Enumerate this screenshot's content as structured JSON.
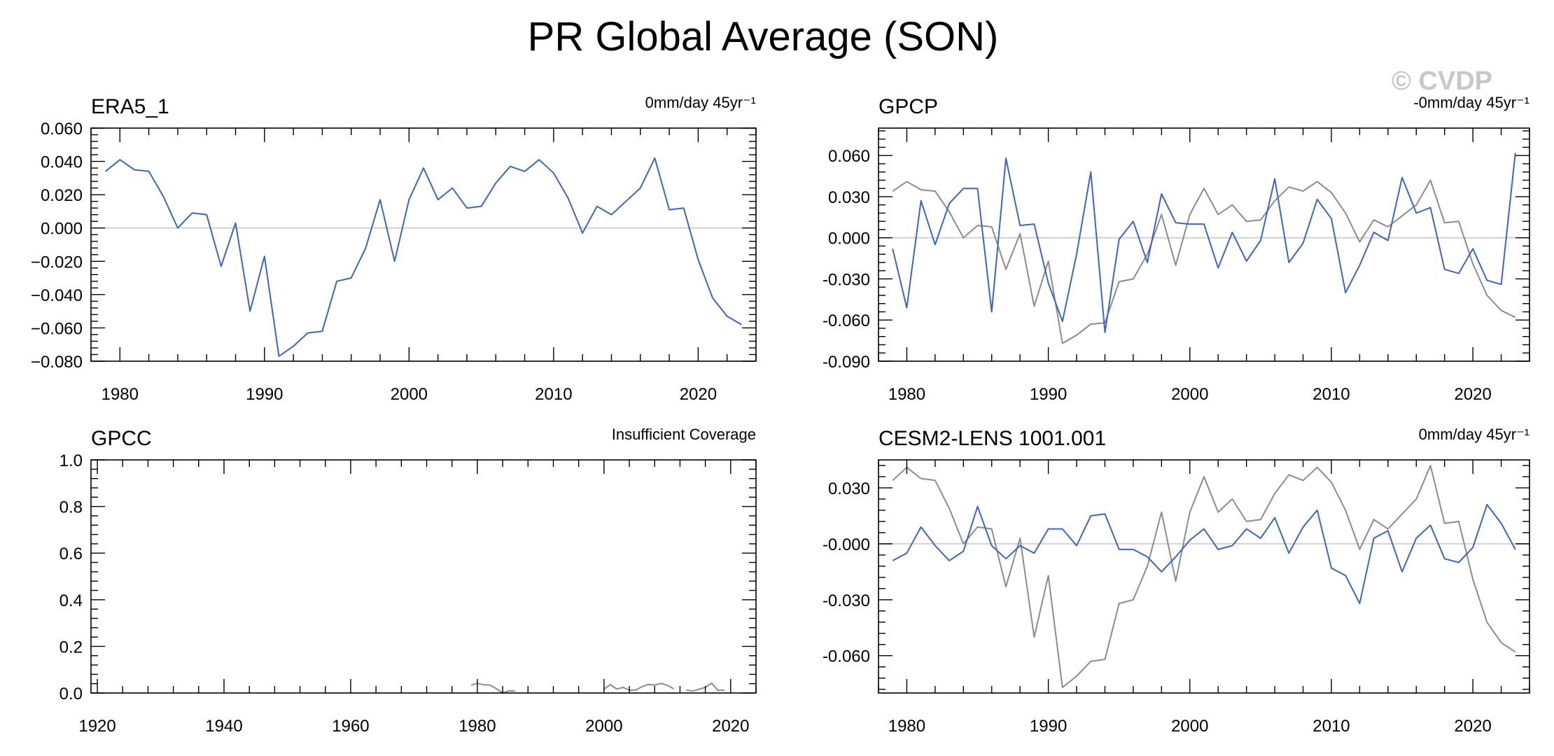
{
  "title": "PR Global Average (SON)",
  "watermark": "© CVDP",
  "colors": {
    "blue_series": "#3a63d6",
    "gray_series": "#8c8c8c",
    "zero_line": "#c8c8c8",
    "watermark": "#c8c8c8"
  },
  "chart_data": [
    {
      "type": "line",
      "title": "ERA5_1",
      "trend_label": "0mm/day 45yr⁻¹",
      "xlim": [
        1978,
        2024
      ],
      "ylim": [
        -0.08,
        0.06
      ],
      "xticks": [
        1980,
        1990,
        2000,
        2010,
        2020
      ],
      "yticks": [
        -0.08,
        -0.06,
        -0.04,
        -0.02,
        0.0,
        0.02,
        0.04,
        0.06
      ],
      "ytick_labels": [
        "−0.080",
        "−0.060",
        "−0.040",
        "−0.020",
        "0.000",
        "0.020",
        "0.040",
        "0.060"
      ],
      "x": [
        1979,
        1980,
        1981,
        1982,
        1983,
        1984,
        1985,
        1986,
        1987,
        1988,
        1989,
        1990,
        1991,
        1992,
        1993,
        1994,
        1995,
        1996,
        1997,
        1998,
        1999,
        2000,
        2001,
        2002,
        2003,
        2004,
        2005,
        2006,
        2007,
        2008,
        2009,
        2010,
        2011,
        2012,
        2013,
        2014,
        2015,
        2016,
        2017,
        2018,
        2019,
        2020,
        2021,
        2022,
        2023
      ],
      "series": [
        {
          "color_key": "blue_series",
          "values": [
            0.034,
            0.041,
            0.035,
            0.034,
            0.019,
            0.0,
            0.009,
            0.008,
            -0.023,
            0.003,
            -0.05,
            -0.017,
            -0.077,
            -0.071,
            -0.063,
            -0.062,
            -0.032,
            -0.03,
            -0.012,
            0.017,
            -0.02,
            0.017,
            0.036,
            0.017,
            0.024,
            0.012,
            0.013,
            0.027,
            0.037,
            0.034,
            0.041,
            0.033,
            0.018,
            -0.003,
            0.013,
            0.008,
            0.016,
            0.024,
            0.042,
            0.011,
            0.012,
            -0.019,
            -0.042,
            -0.053,
            -0.058
          ]
        }
      ]
    },
    {
      "type": "line",
      "title": "GPCP",
      "trend_label": "-0mm/day 45yr⁻¹",
      "xlim": [
        1978,
        2024
      ],
      "ylim": [
        -0.09,
        0.08
      ],
      "xticks": [
        1980,
        1990,
        2000,
        2010,
        2020
      ],
      "yticks": [
        -0.09,
        -0.06,
        -0.03,
        0.0,
        0.03,
        0.06
      ],
      "ytick_labels": [
        "-0.090",
        "-0.060",
        "-0.030",
        "0.000",
        "0.030",
        "0.060"
      ],
      "x": [
        1979,
        1980,
        1981,
        1982,
        1983,
        1984,
        1985,
        1986,
        1987,
        1988,
        1989,
        1990,
        1991,
        1992,
        1993,
        1994,
        1995,
        1996,
        1997,
        1998,
        1999,
        2000,
        2001,
        2002,
        2003,
        2004,
        2005,
        2006,
        2007,
        2008,
        2009,
        2010,
        2011,
        2012,
        2013,
        2014,
        2015,
        2016,
        2017,
        2018,
        2019,
        2020,
        2021,
        2022,
        2023
      ],
      "series": [
        {
          "color_key": "gray_series",
          "values": [
            0.034,
            0.041,
            0.035,
            0.034,
            0.019,
            0.0,
            0.009,
            0.008,
            -0.023,
            0.003,
            -0.05,
            -0.017,
            -0.077,
            -0.071,
            -0.063,
            -0.062,
            -0.032,
            -0.03,
            -0.012,
            0.017,
            -0.02,
            0.017,
            0.036,
            0.017,
            0.024,
            0.012,
            0.013,
            0.027,
            0.037,
            0.034,
            0.041,
            0.033,
            0.018,
            -0.003,
            0.013,
            0.008,
            0.016,
            0.024,
            0.042,
            0.011,
            0.012,
            -0.019,
            -0.042,
            -0.053,
            -0.058
          ]
        },
        {
          "color_key": "blue_series",
          "values": [
            -0.008,
            -0.051,
            0.027,
            -0.005,
            0.025,
            0.036,
            0.036,
            -0.054,
            0.058,
            0.009,
            0.01,
            -0.033,
            -0.061,
            -0.012,
            0.048,
            -0.069,
            -0.001,
            0.012,
            -0.018,
            0.032,
            0.011,
            0.01,
            0.01,
            -0.022,
            0.004,
            -0.017,
            -0.002,
            0.043,
            -0.018,
            -0.004,
            0.028,
            0.014,
            -0.04,
            -0.02,
            0.004,
            -0.002,
            0.044,
            0.018,
            0.022,
            -0.023,
            -0.026,
            -0.008,
            -0.031,
            -0.034,
            0.062
          ]
        }
      ]
    },
    {
      "type": "line",
      "title": "GPCC",
      "trend_label": "Insufficient Coverage",
      "xlim": [
        1919,
        2024
      ],
      "ylim": [
        0.0,
        1.0
      ],
      "xticks": [
        1920,
        1940,
        1960,
        1980,
        2000,
        2020
      ],
      "yticks": [
        0.0,
        0.2,
        0.4,
        0.6,
        0.8,
        1.0
      ],
      "ytick_labels": [
        "0.0",
        "0.2",
        "0.4",
        "0.6",
        "0.8",
        "1.0"
      ],
      "x": [
        1979,
        1980,
        1981,
        1982,
        1983,
        1984,
        1985,
        1986,
        1987,
        1988,
        1989,
        1990,
        1991,
        1992,
        1993,
        1994,
        1995,
        1996,
        1997,
        1998,
        1999,
        2000,
        2001,
        2002,
        2003,
        2004,
        2005,
        2006,
        2007,
        2008,
        2009,
        2010,
        2011,
        2012,
        2013,
        2014,
        2015,
        2016,
        2017,
        2018,
        2019,
        2020,
        2021,
        2022,
        2023
      ],
      "series": [
        {
          "color_key": "gray_series",
          "values": [
            0.034,
            0.041,
            0.035,
            0.034,
            0.019,
            0.0,
            0.009,
            0.008,
            null,
            0.003,
            null,
            null,
            null,
            null,
            null,
            null,
            null,
            null,
            null,
            0.017,
            null,
            0.017,
            0.036,
            0.017,
            0.024,
            0.012,
            0.013,
            0.027,
            0.037,
            0.034,
            0.041,
            0.033,
            0.018,
            null,
            0.013,
            0.008,
            0.016,
            0.024,
            0.042,
            0.011,
            0.012,
            null,
            null,
            null,
            null
          ]
        }
      ]
    },
    {
      "type": "line",
      "title": "CESM2-LENS 1001.001",
      "trend_label": "0mm/day 45yr⁻¹",
      "xlim": [
        1978,
        2024
      ],
      "ylim": [
        -0.08,
        0.045
      ],
      "xticks": [
        1980,
        1990,
        2000,
        2010,
        2020
      ],
      "yticks": [
        -0.06,
        -0.03,
        0.0,
        0.03
      ],
      "ytick_labels": [
        "-0.060",
        "-0.030",
        "-0.000",
        "0.030"
      ],
      "x": [
        1979,
        1980,
        1981,
        1982,
        1983,
        1984,
        1985,
        1986,
        1987,
        1988,
        1989,
        1990,
        1991,
        1992,
        1993,
        1994,
        1995,
        1996,
        1997,
        1998,
        1999,
        2000,
        2001,
        2002,
        2003,
        2004,
        2005,
        2006,
        2007,
        2008,
        2009,
        2010,
        2011,
        2012,
        2013,
        2014,
        2015,
        2016,
        2017,
        2018,
        2019,
        2020,
        2021,
        2022,
        2023
      ],
      "series": [
        {
          "color_key": "gray_series",
          "values": [
            0.034,
            0.041,
            0.035,
            0.034,
            0.019,
            0.0,
            0.009,
            0.008,
            -0.023,
            0.003,
            -0.05,
            -0.017,
            -0.077,
            -0.071,
            -0.063,
            -0.062,
            -0.032,
            -0.03,
            -0.012,
            0.017,
            -0.02,
            0.017,
            0.036,
            0.017,
            0.024,
            0.012,
            0.013,
            0.027,
            0.037,
            0.034,
            0.041,
            0.033,
            0.018,
            -0.003,
            0.013,
            0.008,
            0.016,
            0.024,
            0.042,
            0.011,
            0.012,
            -0.019,
            -0.042,
            -0.053,
            -0.058
          ]
        },
        {
          "color_key": "blue_series",
          "values": [
            -0.009,
            -0.005,
            0.009,
            -0.001,
            -0.009,
            -0.004,
            0.02,
            -0.001,
            -0.008,
            -0.001,
            -0.005,
            0.008,
            0.008,
            -0.001,
            0.015,
            0.016,
            -0.003,
            -0.003,
            -0.007,
            -0.015,
            -0.007,
            0.002,
            0.008,
            -0.003,
            -0.001,
            0.008,
            0.003,
            0.014,
            -0.005,
            0.009,
            0.018,
            -0.013,
            -0.017,
            -0.032,
            0.003,
            0.007,
            -0.015,
            0.003,
            0.01,
            -0.008,
            -0.01,
            -0.002,
            0.021,
            0.011,
            -0.003
          ]
        }
      ]
    }
  ]
}
